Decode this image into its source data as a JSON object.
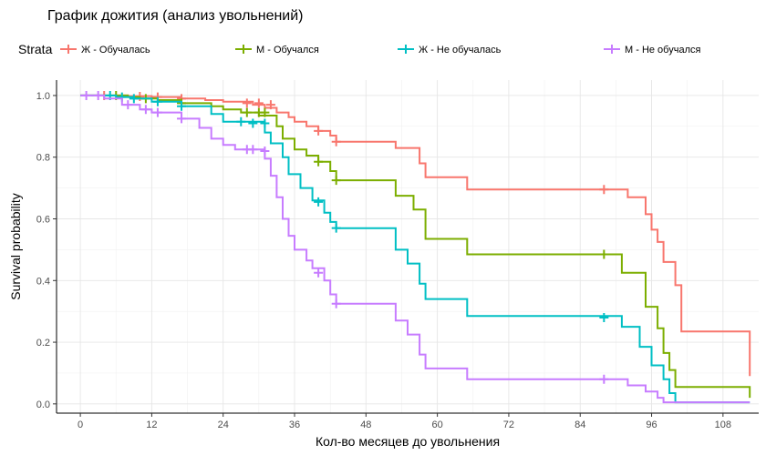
{
  "chart_data": {
    "type": "line",
    "title": "График дожития (анализ увольнений)",
    "xlabel": "Кол-во месяцев до увольнения",
    "ylabel": "Survival probability",
    "legend_title": "Strata",
    "legend_position": "top",
    "xlim": [
      -4,
      114
    ],
    "ylim": [
      -0.03,
      1.05
    ],
    "xticks": [
      0,
      12,
      24,
      36,
      48,
      60,
      72,
      84,
      96,
      108
    ],
    "yticks": [
      0.0,
      0.2,
      0.4,
      0.6,
      0.8,
      1.0
    ],
    "ytick_labels": [
      "0.0",
      "0.2",
      "0.4",
      "0.6",
      "0.8",
      "1.0"
    ],
    "grid": true,
    "series": [
      {
        "name": "Ж - Обучалась",
        "color": "#F8766D",
        "steps": [
          [
            0,
            1.0
          ],
          [
            8,
            0.998
          ],
          [
            12,
            0.995
          ],
          [
            17,
            0.99
          ],
          [
            21,
            0.985
          ],
          [
            24,
            0.98
          ],
          [
            29,
            0.97
          ],
          [
            31,
            0.96
          ],
          [
            33,
            0.945
          ],
          [
            35,
            0.93
          ],
          [
            36,
            0.915
          ],
          [
            38,
            0.9
          ],
          [
            40,
            0.885
          ],
          [
            42,
            0.87
          ],
          [
            43,
            0.85
          ],
          [
            53,
            0.83
          ],
          [
            57,
            0.78
          ],
          [
            58,
            0.735
          ],
          [
            65,
            0.695
          ],
          [
            89,
            0.695
          ],
          [
            92,
            0.67
          ],
          [
            95,
            0.615
          ],
          [
            96,
            0.565
          ],
          [
            97,
            0.525
          ],
          [
            98,
            0.46
          ],
          [
            100,
            0.385
          ],
          [
            101,
            0.235
          ],
          [
            112,
            0.235
          ],
          [
            112.5,
            0.09
          ]
        ],
        "censored": [
          [
            4,
            1.0
          ],
          [
            10,
            0.997
          ],
          [
            13,
            0.995
          ],
          [
            17,
            0.99
          ],
          [
            28,
            0.975
          ],
          [
            30,
            0.975
          ],
          [
            32,
            0.97
          ],
          [
            40,
            0.885
          ],
          [
            43,
            0.85
          ],
          [
            88,
            0.695
          ]
        ]
      },
      {
        "name": "М - Обучался",
        "color": "#7CAE00",
        "steps": [
          [
            0,
            1.0
          ],
          [
            8,
            0.995
          ],
          [
            10,
            0.99
          ],
          [
            13,
            0.985
          ],
          [
            17,
            0.975
          ],
          [
            22,
            0.965
          ],
          [
            24,
            0.955
          ],
          [
            27,
            0.945
          ],
          [
            30,
            0.935
          ],
          [
            33,
            0.9
          ],
          [
            34,
            0.86
          ],
          [
            36,
            0.825
          ],
          [
            38,
            0.805
          ],
          [
            40,
            0.785
          ],
          [
            42,
            0.755
          ],
          [
            43,
            0.725
          ],
          [
            53,
            0.675
          ],
          [
            56,
            0.63
          ],
          [
            58,
            0.535
          ],
          [
            65,
            0.485
          ],
          [
            91,
            0.425
          ],
          [
            95,
            0.315
          ],
          [
            97,
            0.245
          ],
          [
            98,
            0.165
          ],
          [
            99,
            0.11
          ],
          [
            100,
            0.055
          ],
          [
            112,
            0.055
          ],
          [
            112.5,
            0.02
          ]
        ],
        "censored": [
          [
            6,
            1.0
          ],
          [
            11,
            0.99
          ],
          [
            17,
            0.975
          ],
          [
            28,
            0.945
          ],
          [
            30,
            0.945
          ],
          [
            31,
            0.945
          ],
          [
            40,
            0.785
          ],
          [
            43,
            0.725
          ],
          [
            88,
            0.485
          ]
        ]
      },
      {
        "name": "Ж - Не обучалась",
        "color": "#00BFC4",
        "steps": [
          [
            0,
            1.0
          ],
          [
            6,
            0.995
          ],
          [
            9,
            0.99
          ],
          [
            12,
            0.98
          ],
          [
            17,
            0.965
          ],
          [
            22,
            0.94
          ],
          [
            24,
            0.915
          ],
          [
            31,
            0.88
          ],
          [
            32,
            0.845
          ],
          [
            34,
            0.8
          ],
          [
            35,
            0.745
          ],
          [
            37,
            0.7
          ],
          [
            39,
            0.66
          ],
          [
            41,
            0.62
          ],
          [
            42,
            0.59
          ],
          [
            43,
            0.57
          ],
          [
            53,
            0.5
          ],
          [
            55,
            0.455
          ],
          [
            57,
            0.39
          ],
          [
            58,
            0.34
          ],
          [
            65,
            0.285
          ],
          [
            91,
            0.25
          ],
          [
            94,
            0.185
          ],
          [
            96,
            0.125
          ],
          [
            98,
            0.08
          ],
          [
            99,
            0.035
          ],
          [
            100,
            0.005
          ],
          [
            112.5,
            0.005
          ]
        ],
        "censored": [
          [
            5,
            1.0
          ],
          [
            7,
            0.995
          ],
          [
            9,
            0.99
          ],
          [
            13,
            0.98
          ],
          [
            17,
            0.965
          ],
          [
            27,
            0.915
          ],
          [
            29,
            0.91
          ],
          [
            31,
            0.91
          ],
          [
            40,
            0.655
          ],
          [
            43,
            0.57
          ],
          [
            88,
            0.28
          ]
        ]
      },
      {
        "name": "М - Не обучался",
        "color": "#C77CFF",
        "steps": [
          [
            0,
            1.0
          ],
          [
            4,
            0.99
          ],
          [
            7,
            0.97
          ],
          [
            10,
            0.955
          ],
          [
            12,
            0.945
          ],
          [
            17,
            0.925
          ],
          [
            20,
            0.895
          ],
          [
            22,
            0.86
          ],
          [
            24,
            0.84
          ],
          [
            26,
            0.825
          ],
          [
            31,
            0.795
          ],
          [
            32,
            0.74
          ],
          [
            33,
            0.67
          ],
          [
            34,
            0.6
          ],
          [
            35,
            0.545
          ],
          [
            36,
            0.5
          ],
          [
            38,
            0.465
          ],
          [
            39,
            0.44
          ],
          [
            41,
            0.4
          ],
          [
            42,
            0.355
          ],
          [
            43,
            0.325
          ],
          [
            53,
            0.27
          ],
          [
            55,
            0.225
          ],
          [
            57,
            0.16
          ],
          [
            58,
            0.115
          ],
          [
            65,
            0.08
          ],
          [
            89,
            0.08
          ],
          [
            92,
            0.06
          ],
          [
            95,
            0.04
          ],
          [
            97,
            0.02
          ],
          [
            98,
            0.005
          ],
          [
            112.5,
            0.005
          ]
        ],
        "censored": [
          [
            1,
            1.0
          ],
          [
            3,
            1.0
          ],
          [
            8,
            0.97
          ],
          [
            11,
            0.955
          ],
          [
            13,
            0.945
          ],
          [
            17,
            0.925
          ],
          [
            28,
            0.825
          ],
          [
            29,
            0.825
          ],
          [
            31,
            0.82
          ],
          [
            40,
            0.425
          ],
          [
            43,
            0.325
          ],
          [
            88,
            0.08
          ]
        ]
      }
    ]
  }
}
